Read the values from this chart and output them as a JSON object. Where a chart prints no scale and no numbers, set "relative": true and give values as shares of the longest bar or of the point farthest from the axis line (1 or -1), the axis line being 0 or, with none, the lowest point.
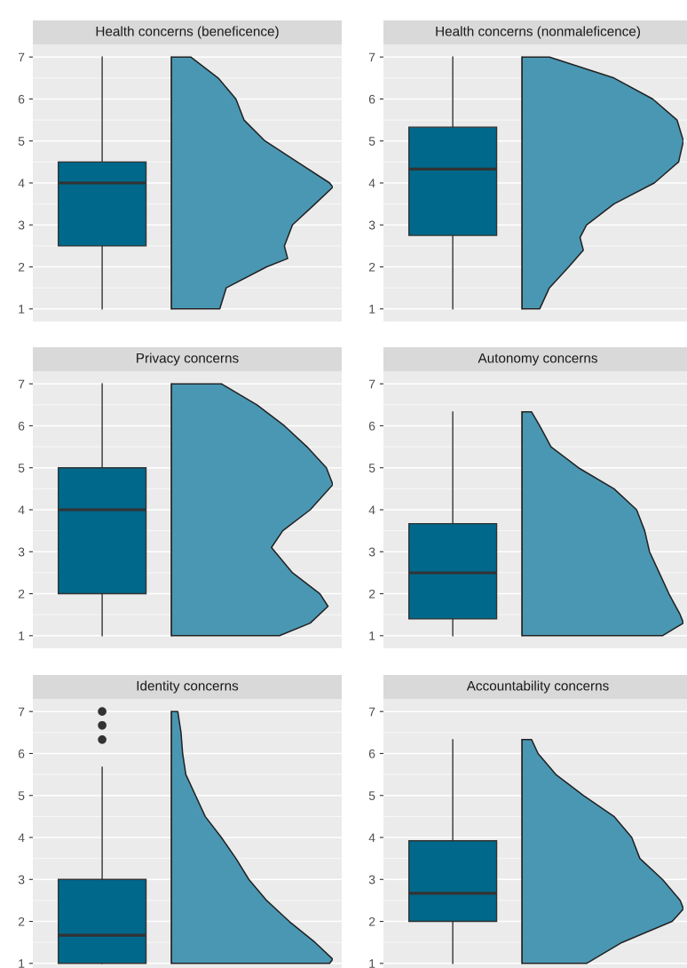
{
  "chart_data": [
    {
      "type": "box",
      "title": "Health concerns (beneficence)",
      "categories": [
        null
      ],
      "ylim": [
        0.7,
        7.3
      ],
      "yticks": [
        1,
        2,
        3,
        4,
        5,
        6,
        7
      ],
      "grid": "y",
      "tick_labels": "y",
      "color": "#00688b",
      "boxes": [
        {
          "low": 1,
          "q1": 2.5,
          "median": 4.0,
          "q3": 4.5,
          "high": 7
        }
      ]
    },
    {
      "type": "area",
      "orientation": "horizontal",
      "relative": true,
      "color": "#4a97b3",
      "ylim": [
        0.7,
        7.3
      ],
      "tick_labels": false,
      "x": [
        1,
        1.5,
        2,
        2.2,
        2.5,
        3,
        3.5,
        3.9,
        4,
        4.5,
        5,
        5.5,
        6,
        6.5,
        7
      ],
      "values": [
        0.3,
        0.34,
        0.59,
        0.72,
        0.7,
        0.75,
        0.89,
        1.0,
        0.98,
        0.78,
        0.58,
        0.45,
        0.4,
        0.29,
        0.12
      ]
    },
    {
      "type": "box",
      "title": "Health concerns (nonmaleficence)",
      "categories": [
        null
      ],
      "ylim": [
        0.7,
        7.3
      ],
      "yticks": [
        1,
        2,
        3,
        4,
        5,
        6,
        7
      ],
      "grid": "y",
      "tick_labels": "y",
      "color": "#00688b",
      "boxes": [
        {
          "low": 1,
          "q1": 2.75,
          "median": 4.33,
          "q3": 5.33,
          "high": 7
        }
      ]
    },
    {
      "type": "area",
      "orientation": "horizontal",
      "relative": true,
      "color": "#4a97b3",
      "ylim": [
        0.7,
        7.3
      ],
      "tick_labels": false,
      "x": [
        1,
        1.5,
        2,
        2.4,
        2.7,
        3,
        3.5,
        4,
        4.5,
        5,
        5.5,
        6,
        6.5,
        7
      ],
      "values": [
        0.11,
        0.17,
        0.29,
        0.38,
        0.36,
        0.4,
        0.57,
        0.82,
        0.97,
        1.0,
        0.96,
        0.81,
        0.57,
        0.17
      ]
    },
    {
      "type": "box",
      "title": "Privacy concerns",
      "categories": [
        null
      ],
      "ylim": [
        0.7,
        7.3
      ],
      "yticks": [
        1,
        2,
        3,
        4,
        5,
        6,
        7
      ],
      "grid": "y",
      "tick_labels": "y",
      "color": "#00688b",
      "boxes": [
        {
          "low": 1,
          "q1": 2,
          "median": 4,
          "q3": 5,
          "high": 7
        }
      ]
    },
    {
      "type": "area",
      "orientation": "horizontal",
      "relative": true,
      "color": "#4a97b3",
      "ylim": [
        0.7,
        7.3
      ],
      "tick_labels": false,
      "x": [
        1,
        1.3,
        1.7,
        2,
        2.5,
        3.1,
        3.5,
        4,
        4.6,
        5,
        5.5,
        6,
        6.5,
        7
      ],
      "values": [
        0.67,
        0.86,
        0.97,
        0.92,
        0.75,
        0.62,
        0.69,
        0.86,
        1.0,
        0.96,
        0.84,
        0.7,
        0.53,
        0.31
      ]
    },
    {
      "type": "box",
      "title": "Autonomy concerns",
      "categories": [
        null
      ],
      "ylim": [
        0.7,
        7.3
      ],
      "yticks": [
        1,
        2,
        3,
        4,
        5,
        6,
        7
      ],
      "grid": "y",
      "tick_labels": "y",
      "color": "#00688b",
      "boxes": [
        {
          "low": 1,
          "q1": 1.4,
          "median": 2.5,
          "q3": 3.67,
          "high": 6.33
        }
      ]
    },
    {
      "type": "area",
      "orientation": "horizontal",
      "relative": true,
      "color": "#4a97b3",
      "ylim": [
        0.7,
        7.3
      ],
      "tick_labels": false,
      "x": [
        1,
        1.3,
        1.5,
        2,
        2.5,
        3,
        3.5,
        4,
        4.5,
        5,
        5.5,
        6,
        6.33
      ],
      "values": [
        0.87,
        1.0,
        0.98,
        0.91,
        0.85,
        0.79,
        0.76,
        0.71,
        0.57,
        0.35,
        0.18,
        0.11,
        0.06
      ]
    },
    {
      "type": "box",
      "title": "Identity concerns",
      "categories": [
        null
      ],
      "ylim": [
        0.7,
        7.3
      ],
      "yticks": [
        1,
        2,
        3,
        4,
        5,
        6,
        7
      ],
      "grid": "y",
      "tick_labels": "y",
      "color": "#00688b",
      "boxes": [
        {
          "low": 1,
          "q1": 1,
          "median": 1.67,
          "q3": 3,
          "high": 5.67,
          "outliers": [
            6.33,
            6.67,
            7
          ]
        }
      ]
    },
    {
      "type": "area",
      "orientation": "horizontal",
      "relative": true,
      "color": "#4a97b3",
      "ylim": [
        0.7,
        7.3
      ],
      "tick_labels": false,
      "x": [
        1,
        1.1,
        1.5,
        2,
        2.5,
        3,
        3.5,
        4,
        4.5,
        5,
        5.5,
        6,
        6.5,
        7
      ],
      "values": [
        0.98,
        1.0,
        0.89,
        0.73,
        0.59,
        0.48,
        0.4,
        0.31,
        0.21,
        0.15,
        0.09,
        0.07,
        0.06,
        0.04
      ]
    },
    {
      "type": "box",
      "title": "Accountability concerns",
      "categories": [
        null
      ],
      "ylim": [
        0.7,
        7.3
      ],
      "yticks": [
        1,
        2,
        3,
        4,
        5,
        6,
        7
      ],
      "grid": "y",
      "tick_labels": "y",
      "color": "#00688b",
      "boxes": [
        {
          "low": 1,
          "q1": 2,
          "median": 2.67,
          "q3": 3.92,
          "high": 6.33
        }
      ]
    },
    {
      "type": "area",
      "orientation": "horizontal",
      "relative": true,
      "color": "#4a97b3",
      "ylim": [
        0.7,
        7.3
      ],
      "tick_labels": false,
      "x": [
        1,
        1.5,
        2,
        2.3,
        2.5,
        3,
        3.5,
        4,
        4.5,
        5,
        5.5,
        6,
        6.33
      ],
      "values": [
        0.4,
        0.62,
        0.93,
        1.0,
        0.98,
        0.87,
        0.73,
        0.68,
        0.57,
        0.38,
        0.21,
        0.1,
        0.06
      ]
    }
  ]
}
